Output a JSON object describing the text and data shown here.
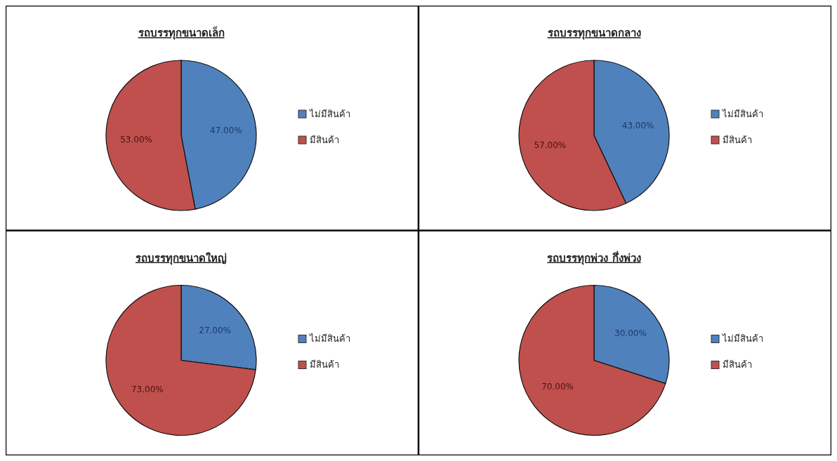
{
  "chart_data": [
    {
      "type": "pie",
      "title": "รถบรรทุกขนาดเล็ก",
      "categories": [
        "ไม่มีสินค้า",
        "มีสินค้า"
      ],
      "values": [
        47,
        53
      ],
      "colors": [
        "#4f81bd",
        "#c0504d"
      ],
      "value_labels": [
        "47.00%",
        "53.00%"
      ],
      "legend": "right"
    },
    {
      "type": "pie",
      "title": "รถบรรทุกขนาดกลาง",
      "categories": [
        "ไม่มีสินค้า",
        "มีสินค้า"
      ],
      "values": [
        43,
        57
      ],
      "colors": [
        "#4f81bd",
        "#c0504d"
      ],
      "value_labels": [
        "43.00%",
        "57.00%"
      ],
      "legend": "right"
    },
    {
      "type": "pie",
      "title": "รถบรรทุกขนาดใหญ่",
      "categories": [
        "ไม่มีสินค้า",
        "มีสินค้า"
      ],
      "values": [
        27,
        73
      ],
      "colors": [
        "#4f81bd",
        "#c0504d"
      ],
      "value_labels": [
        "27.00%",
        "73.00%"
      ],
      "legend": "right"
    },
    {
      "type": "pie",
      "title": "รถบรรทุกพ่วง กึ่งพ่วง",
      "categories": [
        "ไม่มีสินค้า",
        "มีสินค้า"
      ],
      "values": [
        30,
        70
      ],
      "colors": [
        "#4f81bd",
        "#c0504d"
      ],
      "value_labels": [
        "30.00%",
        "70.00%"
      ],
      "legend": "right"
    }
  ]
}
